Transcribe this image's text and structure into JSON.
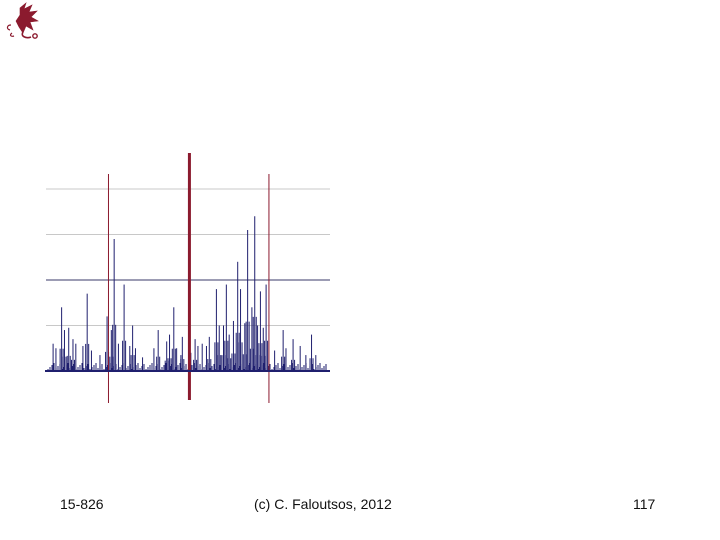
{
  "footer": {
    "course": "15-826",
    "credit": "(c) C. Faloutsos, 2012",
    "page": "117"
  },
  "colors": {
    "spike": "#1f1f6e",
    "marker": "#8b1a2e",
    "grid_light": "#c8c8c8",
    "grid_dark": "#3a3a6a",
    "logo": "#8b1a2e"
  },
  "logo": {
    "icon": "dragon-logo-icon"
  },
  "chart_data": {
    "type": "bar",
    "title": "",
    "xlabel": "",
    "ylabel": "",
    "xlim": [
      0,
      100
    ],
    "ylim": [
      0,
      4
    ],
    "grid": true,
    "gridlines": [
      1,
      2,
      3,
      4
    ],
    "markers": [
      {
        "x": 22,
        "emphasis": false
      },
      {
        "x": 50.5,
        "emphasis": true
      },
      {
        "x": 78.5,
        "emphasis": false
      }
    ],
    "x": [
      2.5,
      3.5,
      5.5,
      6.5,
      8,
      9.5,
      10.5,
      13,
      14.5,
      16,
      19,
      21.5,
      23,
      24,
      25.5,
      27.5,
      29.5,
      30.5,
      31.5,
      34,
      38,
      39.5,
      42.5,
      43.5,
      45,
      46,
      47.5,
      48,
      51,
      52.5,
      53.5,
      55,
      56.5,
      57.5,
      60,
      61,
      62.5,
      63.5,
      64.5,
      66,
      67.5,
      68.5,
      70,
      71,
      72.5,
      73.5,
      74.5,
      75.5,
      76.5,
      77.5,
      80.5,
      83.5,
      84.5,
      87,
      89.5,
      91.5,
      93.5,
      95
    ],
    "values": [
      0.6,
      0.5,
      1.4,
      0.9,
      0.95,
      0.7,
      0.6,
      0.55,
      1.7,
      0.45,
      0.35,
      1.2,
      0.9,
      2.9,
      0.6,
      1.9,
      0.55,
      1.0,
      0.5,
      0.3,
      0.5,
      0.9,
      0.65,
      0.8,
      1.4,
      0.5,
      0.35,
      0.75,
      0.4,
      0.7,
      0.55,
      0.6,
      0.55,
      0.75,
      1.8,
      1.0,
      1.0,
      1.9,
      0.8,
      1.1,
      2.4,
      1.8,
      1.05,
      3.1,
      1.4,
      3.4,
      1.0,
      1.75,
      0.95,
      1.9,
      0.45,
      0.9,
      0.5,
      0.7,
      0.55,
      0.35,
      0.8,
      0.35
    ]
  }
}
